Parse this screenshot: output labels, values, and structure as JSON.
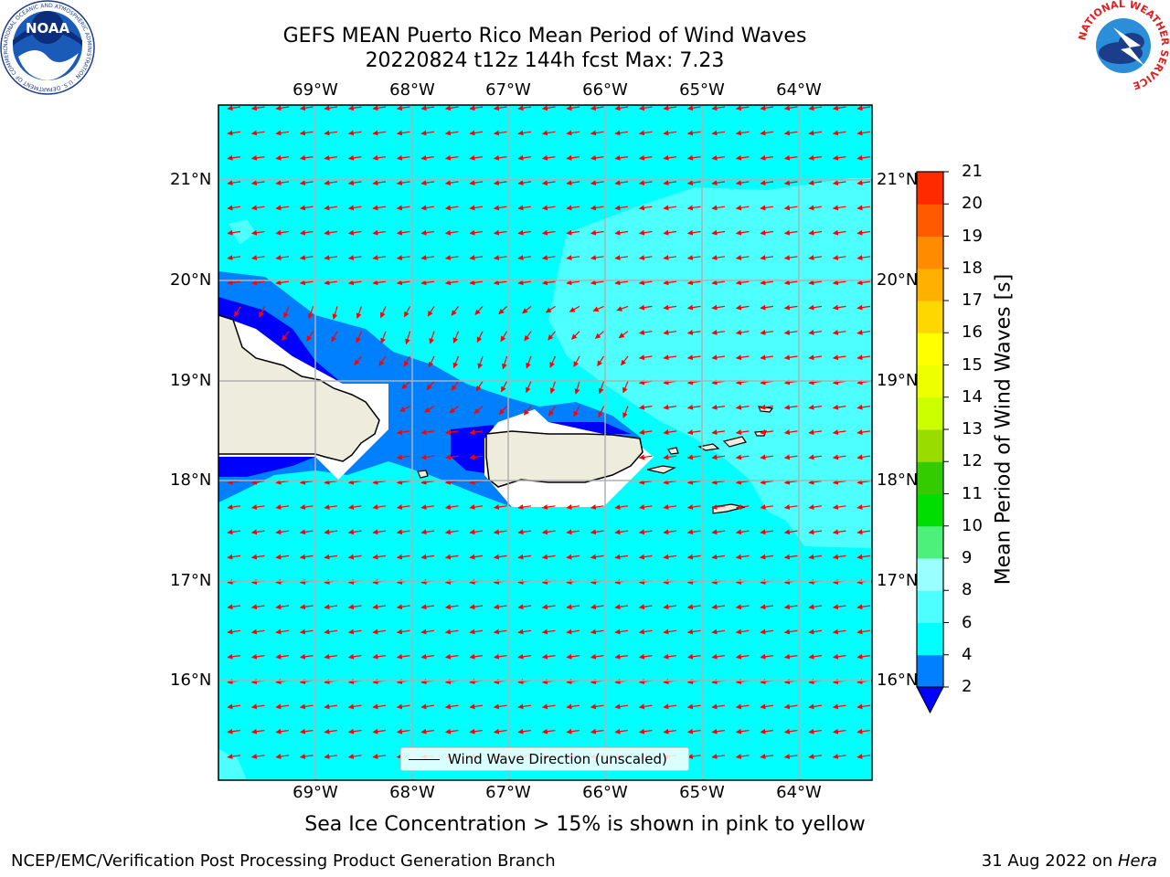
{
  "header": {
    "title_line1": "GEFS MEAN Puerto Rico Mean Period of Wind Waves",
    "title_line2": "20220824 t12z 144h fcst   Max: 7.23"
  },
  "logos": {
    "noaa_text": "NOAA",
    "noaa_ring": "NATIONAL OCEANIC AND ATMOSPHERIC ADMINISTRATION · U.S. DEPARTMENT OF COMMERCE",
    "nws_ring": "NATIONAL WEATHER SERVICE"
  },
  "map": {
    "lon_labels": [
      "69°W",
      "68°W",
      "67°W",
      "66°W",
      "65°W",
      "64°W"
    ],
    "lat_labels": [
      "21°N",
      "20°N",
      "19°N",
      "18°N",
      "17°N",
      "16°N"
    ],
    "legend_label": "Wind Wave Direction (unscaled)",
    "fill_colors": {
      "ocean_main": "#00ffff",
      "ocean_light": "#4dffff",
      "band_2_4": "#0080ff",
      "band_below_2": "#0000ff",
      "land": "#eeecdc",
      "arrow": "#ff0000"
    }
  },
  "colorbar": {
    "label": "Mean Period of Wind Waves [s]",
    "ticks": [
      "2",
      "4",
      "6",
      "8",
      "9",
      "10",
      "11",
      "12",
      "13",
      "14",
      "15",
      "16",
      "17",
      "18",
      "19",
      "20",
      "21"
    ],
    "colors": [
      "#0080ff",
      "#00ffff",
      "#4dffff",
      "#99ffff",
      "#4cf07a",
      "#00dd00",
      "#33cc00",
      "#99dd00",
      "#ccff00",
      "#eeff00",
      "#ffff00",
      "#ffd700",
      "#ffb000",
      "#ff8c00",
      "#ff5a00",
      "#ff2a00"
    ],
    "extend_color": "#0000ff"
  },
  "footer": {
    "subtitle": "Sea Ice Concentration > 15% is shown in pink to yellow",
    "left": "NCEP/EMC/Verification Post Processing Product Generation Branch",
    "right_prefix": "31 Aug 2022 on ",
    "right_host": "Hera"
  }
}
